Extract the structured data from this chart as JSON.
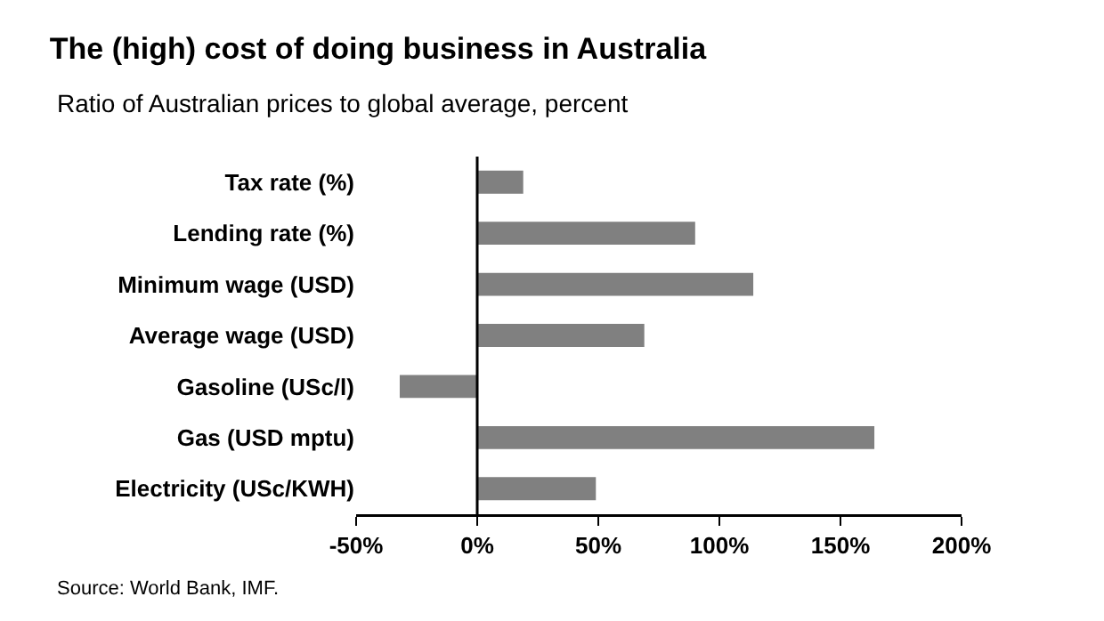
{
  "chart_data": {
    "type": "bar",
    "orientation": "horizontal",
    "title": "The (high) cost of doing business in Australia",
    "subtitle": "Ratio of Australian prices to global average, percent",
    "categories": [
      "Tax rate (%)",
      "Lending rate (%)",
      "Minimum wage (USD)",
      "Average wage (USD)",
      "Gasoline (USc/l)",
      "Gas (USD mptu)",
      "Electricity (USc/KWH)"
    ],
    "values": [
      19,
      90,
      114,
      69,
      -32,
      164,
      49
    ],
    "color": "#808080",
    "xlim": [
      -50,
      200
    ],
    "xticks": [
      {
        "value": -50,
        "label": "-50%"
      },
      {
        "value": 0,
        "label": "0%"
      },
      {
        "value": 50,
        "label": "50%"
      },
      {
        "value": 100,
        "label": "100%"
      },
      {
        "value": 150,
        "label": "150%"
      },
      {
        "value": 200,
        "label": "200%"
      }
    ],
    "legend": false,
    "annotations": [
      "Source: World Bank, IMF."
    ]
  }
}
